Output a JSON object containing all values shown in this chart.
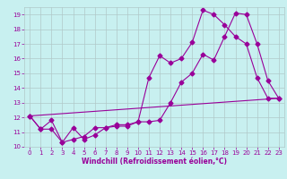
{
  "title": "",
  "xlabel": "Windchill (Refroidissement éolien,°C)",
  "ylabel": "",
  "bg_color": "#c8f0f0",
  "line_color": "#990099",
  "grid_color": "#b0c8c8",
  "xlim": [
    -0.5,
    23.5
  ],
  "ylim": [
    10,
    19.5
  ],
  "yticks": [
    10,
    11,
    12,
    13,
    14,
    15,
    16,
    17,
    18,
    19
  ],
  "xticks": [
    0,
    1,
    2,
    3,
    4,
    5,
    6,
    7,
    8,
    9,
    10,
    11,
    12,
    13,
    14,
    15,
    16,
    17,
    18,
    19,
    20,
    21,
    22,
    23
  ],
  "line1_x": [
    0,
    1,
    2,
    3,
    4,
    5,
    6,
    7,
    8,
    9,
    10,
    11,
    12,
    13,
    14,
    15,
    16,
    17,
    18,
    19,
    20,
    21,
    22,
    23
  ],
  "line1_y": [
    12.1,
    11.2,
    11.2,
    10.3,
    10.5,
    10.7,
    11.3,
    11.3,
    11.4,
    11.4,
    11.7,
    11.7,
    11.8,
    13.0,
    14.4,
    15.0,
    16.3,
    15.9,
    17.5,
    19.1,
    19.0,
    17.0,
    14.5,
    13.3
  ],
  "line2_x": [
    0,
    1,
    2,
    3,
    4,
    5,
    6,
    7,
    8,
    9,
    10,
    11,
    12,
    13,
    14,
    15,
    16,
    17,
    18,
    19,
    20,
    21,
    22,
    23
  ],
  "line2_y": [
    12.1,
    11.2,
    11.8,
    10.3,
    11.3,
    10.5,
    10.8,
    11.3,
    11.5,
    11.5,
    11.7,
    14.7,
    16.2,
    15.7,
    16.0,
    17.1,
    19.3,
    19.0,
    18.3,
    17.5,
    17.0,
    14.7,
    13.3,
    13.3
  ],
  "line3_x": [
    0,
    23
  ],
  "line3_y": [
    12.1,
    13.3
  ],
  "xlabel_fontsize": 5.5,
  "tick_fontsize": 5.0,
  "marker_size": 2.5,
  "line_width": 0.8
}
